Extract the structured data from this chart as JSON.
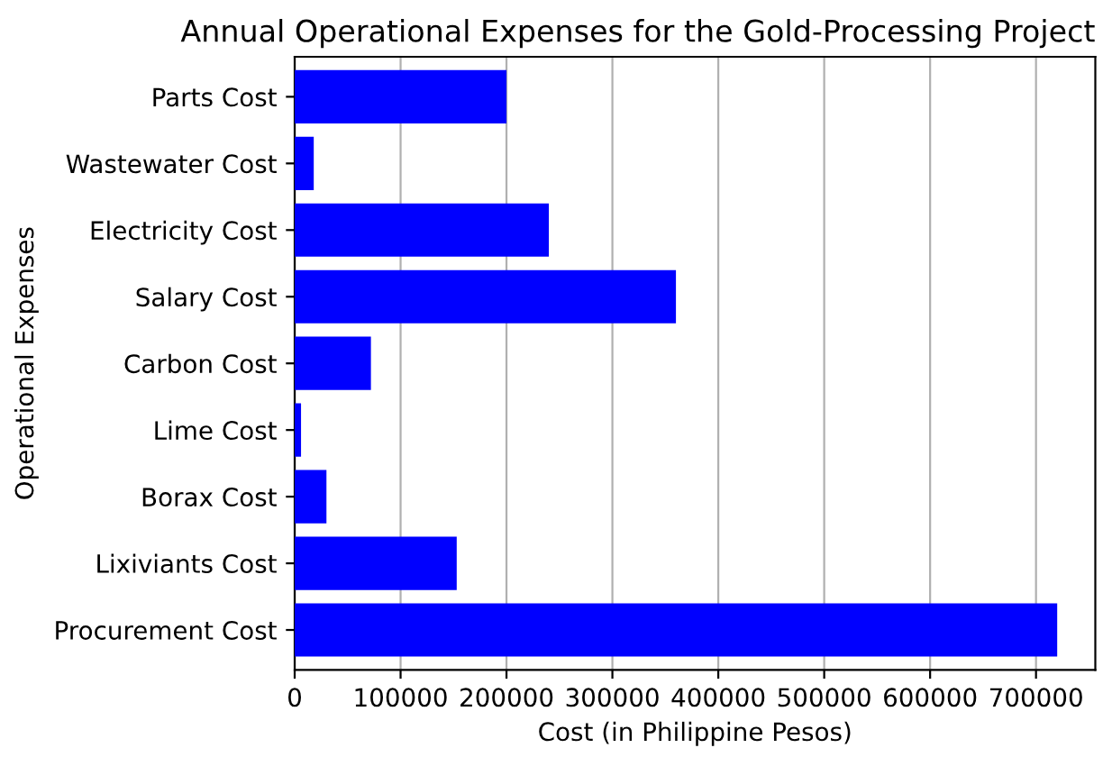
{
  "chart_data": {
    "type": "bar",
    "orientation": "horizontal",
    "title": "Annual Operational Expenses for the Gold-Processing Project",
    "xlabel": "Cost (in Philippine Pesos)",
    "ylabel": "Operational Expenses",
    "categories": [
      "Parts Cost",
      "Wastewater Cost",
      "Electricity Cost",
      "Salary Cost",
      "Carbon Cost",
      "Lime Cost",
      "Borax Cost",
      "Lixiviants Cost",
      "Procurement Cost"
    ],
    "values": [
      200000,
      18000,
      240000,
      360000,
      72000,
      6000,
      30000,
      153000,
      720000
    ],
    "color": "#0000ff",
    "xlim": [
      0,
      756000
    ],
    "xticks": [
      0,
      100000,
      200000,
      300000,
      400000,
      500000,
      600000,
      700000
    ],
    "grid": "x"
  }
}
